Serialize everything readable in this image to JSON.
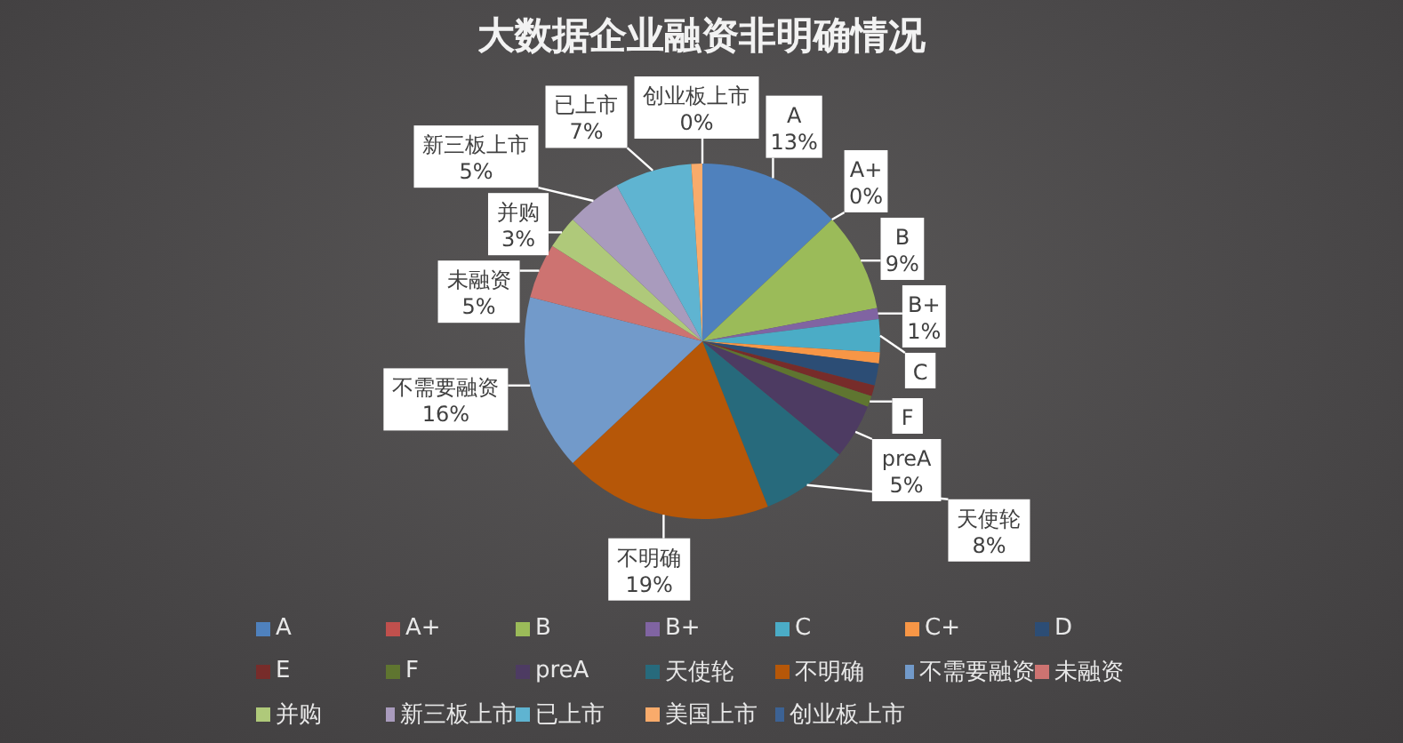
{
  "chart_data": {
    "type": "pie",
    "title": "大数据企业融资非明确情况",
    "categories": [
      "A",
      "A+",
      "B",
      "B+",
      "C",
      "C+",
      "D",
      "E",
      "F",
      "preA",
      "天使轮",
      "不明确",
      "不需要融资",
      "未融资",
      "并购",
      "新三板上市",
      "已上市",
      "美国上市",
      "创业板上市"
    ],
    "values": [
      13,
      0,
      9,
      1,
      3,
      1,
      2,
      1,
      1,
      5,
      8,
      19,
      16,
      5,
      3,
      5,
      7,
      1,
      0
    ],
    "colors": [
      "#4f81bd",
      "#c0504d",
      "#9bbb59",
      "#8064a2",
      "#4bacc6",
      "#f79646",
      "#2c4d75",
      "#772c2a",
      "#5f7530",
      "#4d3b62",
      "#276a7c",
      "#b65708",
      "#729aca",
      "#cd7371",
      "#afc97a",
      "#a99bbd",
      "#5fb4d1",
      "#f9ab6b",
      "#3c6294"
    ],
    "value_labels": [
      "13%",
      "0%",
      "9%",
      "1%",
      null,
      null,
      null,
      null,
      null,
      "5%",
      "8%",
      "19%",
      "16%",
      "5%",
      "3%",
      "5%",
      "7%",
      null,
      "0%"
    ],
    "annotations": [
      {
        "text": "C",
        "x": "C"
      },
      {
        "text": "F",
        "x": "F"
      }
    ],
    "legend": "bottom"
  }
}
